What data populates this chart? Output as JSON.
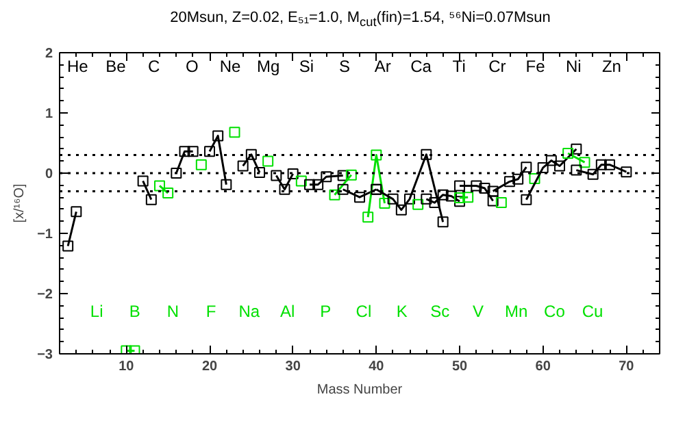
{
  "chart_data": {
    "type": "line",
    "title": "20Msun, Z=0.02, E₅₁=1.0, M$_{cut}$(fin)=1.54, ⁵⁶Ni=0.07Msun",
    "xlabel": "Mass Number",
    "ylabel": "[x/¹⁶O]",
    "xlim": [
      2,
      74
    ],
    "ylim": [
      -3,
      2
    ],
    "xticks": [
      10,
      20,
      30,
      40,
      50,
      60,
      70
    ],
    "yticks": [
      -3,
      -2,
      -1,
      0,
      1,
      2
    ],
    "grid": false,
    "marker": "square",
    "line_style": "solid",
    "ref_lines": [
      {
        "axis": "y",
        "value": 0.3,
        "color": "#000000",
        "line_style": "dotted"
      },
      {
        "axis": "y",
        "value": 0,
        "color": "#000000",
        "line_style": "dotted"
      },
      {
        "axis": "y",
        "value": -0.3,
        "color": "#000000",
        "line_style": "dotted"
      }
    ],
    "annotations": [
      "He",
      "Li",
      "Be",
      "B",
      "C",
      "N",
      "O",
      "F",
      "Ne",
      "Na",
      "Mg",
      "Al",
      "Si",
      "P",
      "S",
      "Cl",
      "Ar",
      "K",
      "Ca",
      "Sc",
      "Ti",
      "V",
      "Cr",
      "Mn",
      "Fe",
      "Co",
      "Ni",
      "Cu",
      "Zn"
    ],
    "series": [
      {
        "color": "#000000",
        "x": [
          3,
          4
        ],
        "values": [
          -1.21,
          -0.64
        ]
      },
      {
        "color": "#00e000",
        "x": [
          10,
          11
        ],
        "values": [
          -2.95,
          -2.95
        ]
      },
      {
        "color": "#000000",
        "x": [
          12,
          13
        ],
        "values": [
          -0.13,
          -0.44
        ]
      },
      {
        "color": "#00e000",
        "x": [
          14,
          15
        ],
        "values": [
          -0.21,
          -0.33
        ]
      },
      {
        "color": "#000000",
        "x": [
          16,
          17,
          18
        ],
        "values": [
          0.0,
          0.36,
          0.36
        ]
      },
      {
        "color": "#00e000",
        "x": [
          19
        ],
        "values": [
          0.14
        ]
      },
      {
        "color": "#000000",
        "x": [
          20,
          21,
          22
        ],
        "values": [
          0.36,
          0.62,
          -0.19
        ]
      },
      {
        "color": "#00e000",
        "x": [
          23
        ],
        "values": [
          0.68
        ]
      },
      {
        "color": "#000000",
        "x": [
          24,
          25,
          26
        ],
        "values": [
          0.12,
          0.31,
          0.01
        ]
      },
      {
        "color": "#00e000",
        "x": [
          27
        ],
        "values": [
          0.2
        ]
      },
      {
        "color": "#000000",
        "x": [
          28,
          29,
          30
        ],
        "values": [
          -0.04,
          -0.27,
          -0.01
        ]
      },
      {
        "color": "#00e000",
        "x": [
          31
        ],
        "values": [
          -0.13
        ]
      },
      {
        "color": "#000000",
        "x": [
          32,
          33,
          34,
          36
        ],
        "values": [
          -0.19,
          -0.19,
          -0.06,
          -0.04
        ]
      },
      {
        "color": "#00e000",
        "x": [
          35,
          37
        ],
        "values": [
          -0.36,
          -0.03
        ]
      },
      {
        "color": "#000000",
        "x": [
          36,
          38,
          40
        ],
        "values": [
          -0.27,
          -0.4,
          -0.27
        ]
      },
      {
        "color": "#00e000",
        "x": [
          39,
          40,
          41
        ],
        "values": [
          -0.73,
          0.3,
          -0.5
        ]
      },
      {
        "color": "#000000",
        "x": [
          40,
          42,
          43,
          44,
          46,
          48
        ],
        "values": [
          -0.27,
          -0.43,
          -0.61,
          -0.43,
          0.31,
          -0.81
        ]
      },
      {
        "color": "#00e000",
        "x": [
          45
        ],
        "values": [
          -0.52
        ]
      },
      {
        "color": "#000000",
        "x": [
          46,
          47,
          48,
          49,
          50
        ],
        "values": [
          -0.43,
          -0.49,
          -0.36,
          -0.38,
          -0.47
        ]
      },
      {
        "color": "#00e000",
        "x": [
          50,
          51
        ],
        "values": [
          -0.41,
          -0.4
        ]
      },
      {
        "color": "#000000",
        "x": [
          50,
          52,
          53,
          54
        ],
        "values": [
          -0.21,
          -0.21,
          -0.25,
          -0.46
        ]
      },
      {
        "color": "#00e000",
        "x": [
          55
        ],
        "values": [
          -0.49
        ]
      },
      {
        "color": "#000000",
        "x": [
          54,
          56,
          57,
          58
        ],
        "values": [
          -0.3,
          -0.14,
          -0.1,
          0.1
        ]
      },
      {
        "color": "#00e000",
        "x": [
          59
        ],
        "values": [
          -0.09
        ]
      },
      {
        "color": "#000000",
        "x": [
          58,
          60,
          61,
          62,
          64
        ],
        "values": [
          -0.44,
          0.09,
          0.21,
          0.12,
          0.4
        ]
      },
      {
        "color": "#00e000",
        "x": [
          63,
          65
        ],
        "values": [
          0.33,
          0.18
        ]
      },
      {
        "color": "#000000",
        "x": [
          64,
          66,
          67,
          68,
          70
        ],
        "values": [
          0.05,
          -0.02,
          0.14,
          0.14,
          0.02
        ]
      }
    ]
  }
}
